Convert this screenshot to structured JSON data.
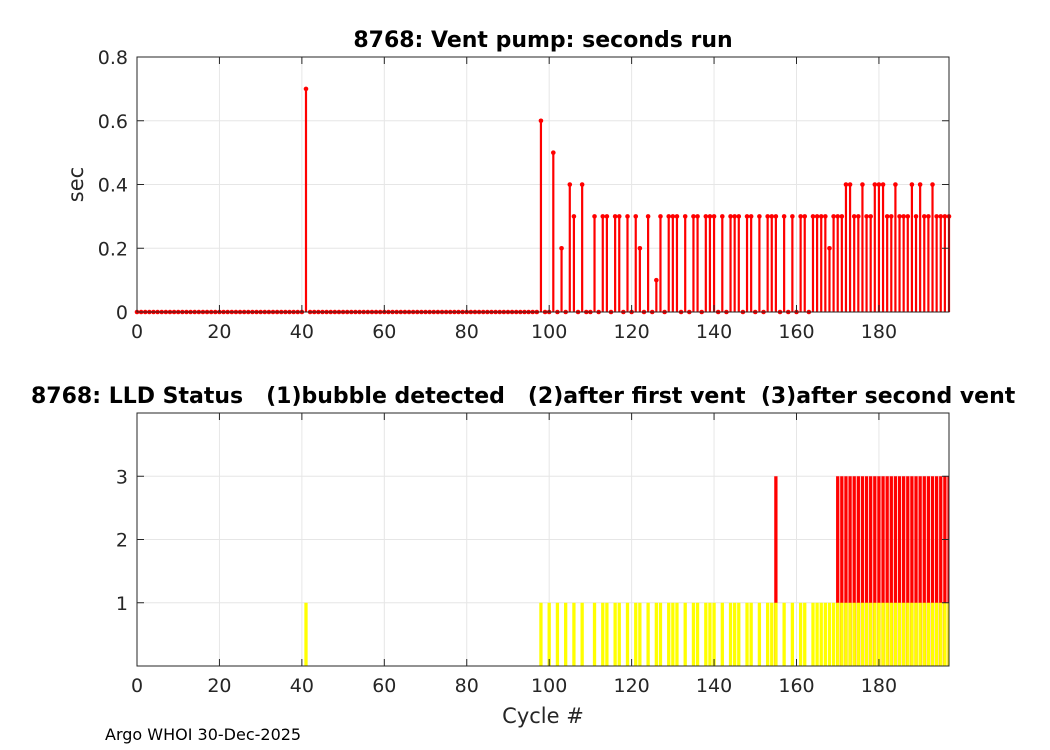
{
  "footer": "Argo WHOI 30-Dec-2025",
  "colors": {
    "red": "#ff0000",
    "yellow": "#ffff00",
    "grid": "#e6e6e6",
    "axis": "#262626"
  },
  "chart_data": [
    {
      "type": "stem",
      "title": "8768: Vent pump: seconds run",
      "xlabel": "",
      "ylabel": "sec",
      "xlim": [
        0,
        197
      ],
      "ylim": [
        0,
        0.8
      ],
      "xticks": [
        0,
        20,
        40,
        60,
        80,
        100,
        120,
        140,
        160,
        180
      ],
      "yticks": [
        0,
        0.2,
        0.4,
        0.6,
        0.8
      ],
      "ytick_labels": [
        "0",
        "0.2",
        "0.4",
        "0.6",
        "0.8"
      ],
      "grid": true,
      "series": [
        {
          "color": "#ff0000",
          "x_start": 0,
          "x_end": 197,
          "default_value": 0,
          "values": {
            "41": 0.7,
            "98": 0.6,
            "101": 0.5,
            "103": 0.2,
            "105": 0.4,
            "106": 0.3,
            "108": 0.4,
            "111": 0.3,
            "113": 0.3,
            "114": 0.3,
            "116": 0.3,
            "117": 0.3,
            "119": 0.3,
            "121": 0.3,
            "122": 0.2,
            "124": 0.3,
            "126": 0.1,
            "127": 0.3,
            "129": 0.3,
            "130": 0.3,
            "131": 0.3,
            "133": 0.3,
            "135": 0.3,
            "136": 0.3,
            "138": 0.3,
            "139": 0.3,
            "140": 0.3,
            "142": 0.3,
            "144": 0.3,
            "145": 0.3,
            "146": 0.3,
            "148": 0.3,
            "149": 0.3,
            "151": 0.3,
            "153": 0.3,
            "154": 0.3,
            "155": 0.3,
            "157": 0.3,
            "159": 0.3,
            "161": 0.3,
            "162": 0.3,
            "164": 0.3,
            "165": 0.3,
            "166": 0.3,
            "167": 0.3,
            "168": 0.2,
            "169": 0.3,
            "170": 0.3,
            "171": 0.3,
            "172": 0.4,
            "173": 0.4,
            "174": 0.3,
            "175": 0.3,
            "176": 0.4,
            "177": 0.3,
            "178": 0.3,
            "179": 0.4,
            "180": 0.4,
            "181": 0.4,
            "182": 0.3,
            "183": 0.3,
            "184": 0.4,
            "185": 0.3,
            "186": 0.3,
            "187": 0.3,
            "188": 0.4,
            "189": 0.3,
            "190": 0.4,
            "191": 0.3,
            "192": 0.3,
            "193": 0.4,
            "194": 0.3,
            "195": 0.3,
            "196": 0.3,
            "197": 0.3
          }
        }
      ]
    },
    {
      "type": "bar",
      "title": "8768: LLD Status   (1)bubble detected   (2)after first vent  (3)after second vent",
      "xlabel": "Cycle #",
      "ylabel": "",
      "xlim": [
        0,
        197
      ],
      "ylim": [
        0,
        4
      ],
      "xticks": [
        0,
        20,
        40,
        60,
        80,
        100,
        120,
        140,
        160,
        180
      ],
      "yticks": [
        1,
        2,
        3
      ],
      "grid": true,
      "series": [
        {
          "color": "#ff0000",
          "value": 3,
          "x": [
            155,
            170,
            171,
            172,
            173,
            174,
            175,
            176,
            177,
            178,
            179,
            180,
            181,
            182,
            183,
            184,
            185,
            186,
            187,
            188,
            189,
            190,
            191,
            192,
            193,
            194,
            195,
            196,
            197
          ]
        },
        {
          "color": "#ffff00",
          "value": 1,
          "x": [
            41,
            98,
            100,
            102,
            104,
            106,
            108,
            111,
            113,
            114,
            116,
            117,
            119,
            121,
            122,
            124,
            126,
            127,
            129,
            130,
            131,
            133,
            135,
            136,
            138,
            139,
            140,
            142,
            144,
            145,
            146,
            148,
            149,
            151,
            153,
            154,
            155,
            157,
            159,
            161,
            162,
            164,
            165,
            166,
            167,
            168,
            169,
            170,
            171,
            172,
            173,
            174,
            175,
            176,
            177,
            178,
            179,
            180,
            181,
            182,
            183,
            184,
            185,
            186,
            187,
            188,
            189,
            190,
            191,
            192,
            193,
            194,
            195,
            196,
            197
          ]
        }
      ]
    }
  ]
}
